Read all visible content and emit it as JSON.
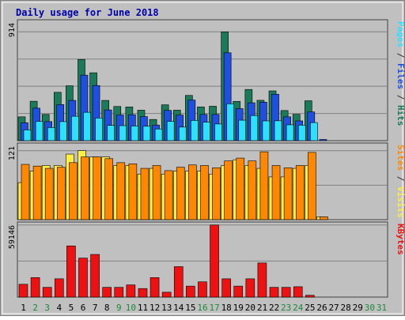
{
  "chart_data": {
    "type": "bar",
    "title": "Daily usage for June 2018",
    "categories": [
      "1",
      "2",
      "3",
      "4",
      "5",
      "6",
      "7",
      "8",
      "9",
      "10",
      "11",
      "12",
      "13",
      "14",
      "15",
      "16",
      "17",
      "18",
      "19",
      "20",
      "21",
      "22",
      "23",
      "24",
      "25",
      "26",
      "27",
      "28",
      "29",
      "30",
      "31"
    ],
    "weekend_days": [
      "2",
      "3",
      "9",
      "10",
      "16",
      "17",
      "23",
      "24",
      "30",
      "31"
    ],
    "colors": {
      "background": "#c0c0c0",
      "title": "#0000aa",
      "hits": "#1a7a5a",
      "files": "#1f4fe0",
      "pages": "#2ee0ff",
      "visits": "#ffee44",
      "sites": "#ff8800",
      "kbytes": "#ee1111",
      "weekday_label": "#000000",
      "weekend_label": "#1a8a3a",
      "grid": "#808080"
    },
    "panels": [
      {
        "label_top": "914",
        "ylim": [
          0,
          914
        ],
        "side_labels": [
          {
            "text": "Pages",
            "color": "#2ee0ff"
          },
          {
            "text": " / ",
            "color": "#333333"
          },
          {
            "text": "Files",
            "color": "#1f4fe0"
          },
          {
            "text": " / ",
            "color": "#333333"
          },
          {
            "text": "Hits",
            "color": "#1a7a5a"
          }
        ],
        "series": [
          {
            "name": "Hits",
            "color": "#1a7a5a",
            "values": [
              200,
              331,
              220,
              406,
              461,
              682,
              570,
              338,
              287,
              283,
              256,
              178,
              301,
              256,
              380,
              283,
              289,
              914,
              330,
              430,
              339,
              418,
              253,
              221,
              335,
              0,
              0,
              0,
              0,
              0,
              0
            ]
          },
          {
            "name": "Files",
            "color": "#1f4fe0",
            "values": [
              150,
              273,
              160,
              303,
              338,
              550,
              463,
              258,
              216,
              218,
              202,
              131,
              254,
              215,
              341,
              220,
              220,
              738,
              269,
              318,
              323,
              390,
              200,
              166,
              241,
              10,
              0,
              0,
              0,
              0,
              0
            ]
          },
          {
            "name": "Pages",
            "color": "#2ee0ff",
            "values": [
              90,
              162,
              110,
              160,
              205,
              238,
              190,
              128,
              126,
              123,
              121,
              98,
              162,
              114,
              170,
              155,
              140,
              310,
              172,
              211,
              166,
              167,
              133,
              130,
              152,
              0,
              0,
              0,
              0,
              0,
              0
            ]
          }
        ]
      },
      {
        "label_top": "121",
        "ylim": [
          0,
          121
        ],
        "side_labels": [
          {
            "text": "Sites",
            "color": "#ff8800"
          },
          {
            "text": " / ",
            "color": "#333333"
          },
          {
            "text": "Visits",
            "color": "#ffee44"
          }
        ],
        "series": [
          {
            "name": "Visits",
            "color": "#ffee44",
            "values": [
              65,
              85,
              95,
              95,
              115,
              121,
              110,
              110,
              95,
              95,
              80,
              90,
              80,
              85,
              85,
              85,
              80,
              95,
              105,
              95,
              90,
              75,
              75,
              90,
              95,
              5,
              0,
              0,
              0,
              0,
              0
            ]
          },
          {
            "name": "Sites",
            "color": "#ff8800",
            "values": [
              97,
              94,
              90,
              92,
              100,
              110,
              110,
              107,
              100,
              98,
              90,
              95,
              86,
              92,
              96,
              95,
              91,
              103,
              108,
              103,
              119,
              95,
              91,
              95,
              118,
              5,
              0,
              0,
              0,
              0,
              0
            ]
          }
        ]
      },
      {
        "label_top": "59146",
        "ylim": [
          0,
          59146
        ],
        "side_labels": [
          {
            "text": "KBytes",
            "color": "#ee1111"
          }
        ],
        "series": [
          {
            "name": "KBytes",
            "color": "#ee1111",
            "values": [
              10500,
              16000,
              8000,
              15000,
              42000,
              32000,
              35000,
              8000,
              8000,
              10000,
              7000,
              16000,
              4000,
              25000,
              9000,
              12500,
              59146,
              15000,
              9000,
              15000,
              28000,
              8000,
              8000,
              8500,
              1500,
              0,
              0,
              0,
              0,
              0,
              0
            ]
          }
        ]
      }
    ]
  }
}
